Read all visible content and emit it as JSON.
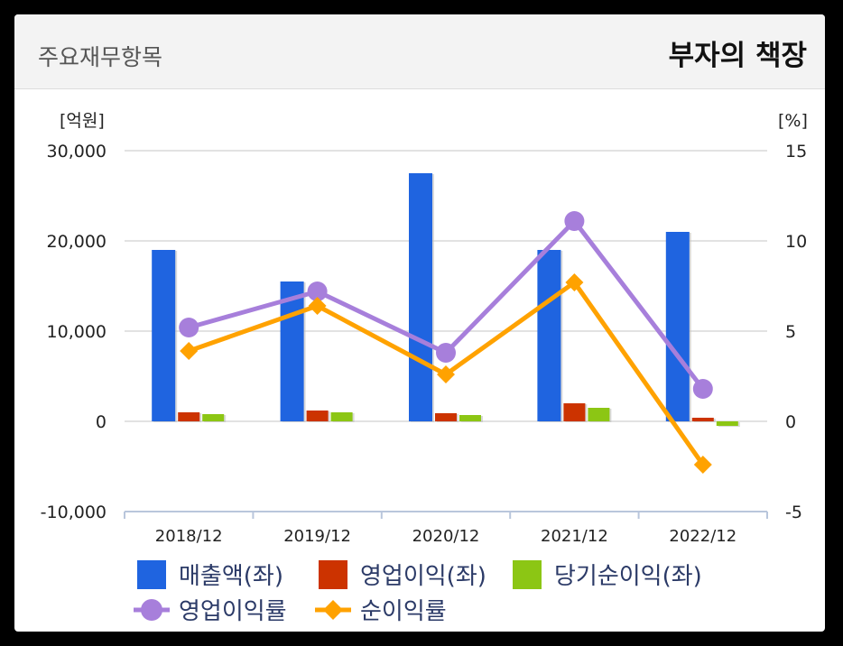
{
  "header": {
    "title": "주요재무항목",
    "brand": "부자의 책장"
  },
  "colors": {
    "sales": "#1f64e0",
    "op": "#cc3300",
    "net": "#8cc614",
    "op_rate": "#a77fdb",
    "net_rate": "#ffa200"
  },
  "chart_data": {
    "type": "bar",
    "categories": [
      "2018/12",
      "2019/12",
      "2020/12",
      "2021/12",
      "2022/12"
    ],
    "left_axis": {
      "unit": "[억원]",
      "range": [
        -10000,
        30000
      ],
      "ticks": [
        "30,000",
        "20,000",
        "10,000",
        "0",
        "-10,000"
      ],
      "tick_values": [
        30000,
        20000,
        10000,
        0,
        -10000
      ]
    },
    "right_axis": {
      "unit": "[%]",
      "range": [
        -5,
        15
      ],
      "ticks": [
        "15",
        "10",
        "5",
        "0",
        "-5"
      ],
      "tick_values": [
        15,
        10,
        5,
        0,
        -5
      ]
    },
    "grid": true,
    "legend_position": "bottom",
    "series": [
      {
        "name": "매출액(좌)",
        "type": "bar",
        "axis": "left",
        "color_key": "sales",
        "values": [
          19000,
          15500,
          27500,
          19000,
          21000
        ]
      },
      {
        "name": "영업이익(좌)",
        "type": "bar",
        "axis": "left",
        "color_key": "op",
        "values": [
          1000,
          1200,
          900,
          2000,
          400
        ]
      },
      {
        "name": "당기순이익(좌)",
        "type": "bar",
        "axis": "left",
        "color_key": "net",
        "values": [
          800,
          1000,
          700,
          1500,
          -500
        ]
      },
      {
        "name": "영업이익률",
        "type": "line",
        "axis": "right",
        "marker": "circle",
        "color_key": "op_rate",
        "values": [
          5.2,
          7.2,
          3.8,
          11.1,
          1.8
        ]
      },
      {
        "name": "순이익률",
        "type": "line",
        "axis": "right",
        "marker": "diamond",
        "color_key": "net_rate",
        "values": [
          3.9,
          6.4,
          2.6,
          7.7,
          -2.4
        ]
      }
    ]
  }
}
